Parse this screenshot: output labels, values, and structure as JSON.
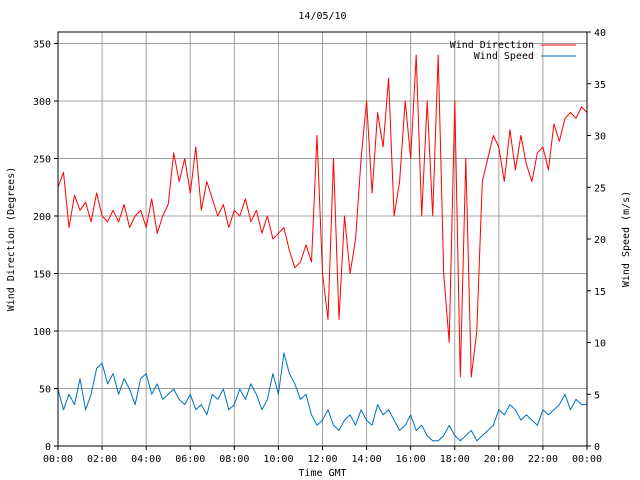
{
  "chart_data": {
    "type": "line",
    "title": "14/05/10",
    "xlabel": "Time GMT",
    "ylabel_left": "Wind Direction (Degrees)",
    "ylabel_right": "Wind Speed (m/s)",
    "x_ticks": [
      "00:00",
      "02:00",
      "04:00",
      "06:00",
      "08:00",
      "10:00",
      "12:00",
      "14:00",
      "16:00",
      "18:00",
      "20:00",
      "22:00",
      "00:00"
    ],
    "x_range_hours": [
      0,
      24
    ],
    "ylim_left": [
      0,
      360
    ],
    "ylim_right": [
      0,
      40
    ],
    "y_ticks_left": [
      0,
      50,
      100,
      150,
      200,
      250,
      300,
      350
    ],
    "y_ticks_right": [
      0,
      5,
      10,
      15,
      20,
      25,
      30,
      35,
      40
    ],
    "grid": true,
    "legend_position": "top-right",
    "series": [
      {
        "name": "Wind Direction",
        "axis": "left",
        "color": "#ff0000",
        "x_hours": [
          0.0,
          0.25,
          0.5,
          0.75,
          1.0,
          1.25,
          1.5,
          1.75,
          2.0,
          2.25,
          2.5,
          2.75,
          3.0,
          3.25,
          3.5,
          3.75,
          4.0,
          4.25,
          4.5,
          4.75,
          5.0,
          5.25,
          5.5,
          5.75,
          6.0,
          6.25,
          6.5,
          6.75,
          7.0,
          7.25,
          7.5,
          7.75,
          8.0,
          8.25,
          8.5,
          8.75,
          9.0,
          9.25,
          9.5,
          9.75,
          10.0,
          10.25,
          10.5,
          10.75,
          11.0,
          11.25,
          11.5,
          11.75,
          12.0,
          12.25,
          12.5,
          12.75,
          13.0,
          13.25,
          13.5,
          13.75,
          14.0,
          14.25,
          14.5,
          14.75,
          15.0,
          15.25,
          15.5,
          15.75,
          16.0,
          16.25,
          16.5,
          16.75,
          17.0,
          17.25,
          17.5,
          17.75,
          18.0,
          18.25,
          18.5,
          18.75,
          19.0,
          19.25,
          19.5,
          19.75,
          20.0,
          20.25,
          20.5,
          20.75,
          21.0,
          21.25,
          21.5,
          21.75,
          22.0,
          22.25,
          22.5,
          22.75,
          23.0,
          23.25,
          23.5,
          23.75,
          24.0
        ],
        "values": [
          225,
          238,
          190,
          218,
          205,
          212,
          195,
          220,
          200,
          195,
          205,
          195,
          210,
          190,
          200,
          205,
          190,
          215,
          185,
          200,
          210,
          255,
          230,
          250,
          220,
          260,
          205,
          230,
          215,
          200,
          210,
          190,
          205,
          200,
          215,
          195,
          205,
          185,
          200,
          180,
          185,
          190,
          170,
          155,
          160,
          175,
          160,
          270,
          150,
          110,
          250,
          110,
          200,
          150,
          180,
          250,
          300,
          220,
          290,
          260,
          320,
          200,
          230,
          300,
          250,
          340,
          200,
          300,
          200,
          340,
          150,
          90,
          300,
          60,
          250,
          60,
          100,
          230,
          250,
          270,
          260,
          230,
          275,
          240,
          270,
          245,
          230,
          255,
          260,
          240,
          280,
          265,
          285,
          290,
          285,
          295,
          290
        ]
      },
      {
        "name": "Wind Speed",
        "axis": "right",
        "color": "#0070c0",
        "x_hours": [
          0.0,
          0.25,
          0.5,
          0.75,
          1.0,
          1.25,
          1.5,
          1.75,
          2.0,
          2.25,
          2.5,
          2.75,
          3.0,
          3.25,
          3.5,
          3.75,
          4.0,
          4.25,
          4.5,
          4.75,
          5.0,
          5.25,
          5.5,
          5.75,
          6.0,
          6.25,
          6.5,
          6.75,
          7.0,
          7.25,
          7.5,
          7.75,
          8.0,
          8.25,
          8.5,
          8.75,
          9.0,
          9.25,
          9.5,
          9.75,
          10.0,
          10.25,
          10.5,
          10.75,
          11.0,
          11.25,
          11.5,
          11.75,
          12.0,
          12.25,
          12.5,
          12.75,
          13.0,
          13.25,
          13.5,
          13.75,
          14.0,
          14.25,
          14.5,
          14.75,
          15.0,
          15.25,
          15.5,
          15.75,
          16.0,
          16.25,
          16.5,
          16.75,
          17.0,
          17.25,
          17.5,
          17.75,
          18.0,
          18.25,
          18.5,
          18.75,
          19.0,
          19.25,
          19.5,
          19.75,
          20.0,
          20.25,
          20.5,
          20.75,
          21.0,
          21.25,
          21.5,
          21.75,
          22.0,
          22.25,
          22.5,
          22.75,
          23.0,
          23.25,
          23.5,
          23.75,
          24.0
        ],
        "values": [
          5.5,
          3.5,
          5,
          4,
          6.5,
          3.5,
          5,
          7.5,
          8,
          6,
          7,
          5,
          6.5,
          5.5,
          4,
          6.5,
          7,
          5,
          6,
          4.5,
          5,
          5.5,
          4.5,
          4,
          5,
          3.5,
          4,
          3,
          5,
          4.5,
          5.5,
          3.5,
          4,
          5.5,
          4.5,
          6,
          5,
          3.5,
          4.5,
          7,
          5,
          9,
          7,
          6,
          4.5,
          5,
          3,
          2,
          2.5,
          3.5,
          2,
          1.5,
          2.5,
          3,
          2,
          3.5,
          2.5,
          2,
          4,
          3,
          3.5,
          2.5,
          1.5,
          2,
          3,
          1.5,
          2,
          1,
          0.5,
          0.5,
          1,
          2,
          1,
          0.5,
          1,
          1.5,
          0.5,
          1,
          1.5,
          2,
          3.5,
          3,
          4,
          3.5,
          2.5,
          3,
          2.5,
          2,
          3.5,
          3,
          3.5,
          4,
          5,
          3.5,
          4.5,
          4,
          4
        ]
      }
    ]
  }
}
